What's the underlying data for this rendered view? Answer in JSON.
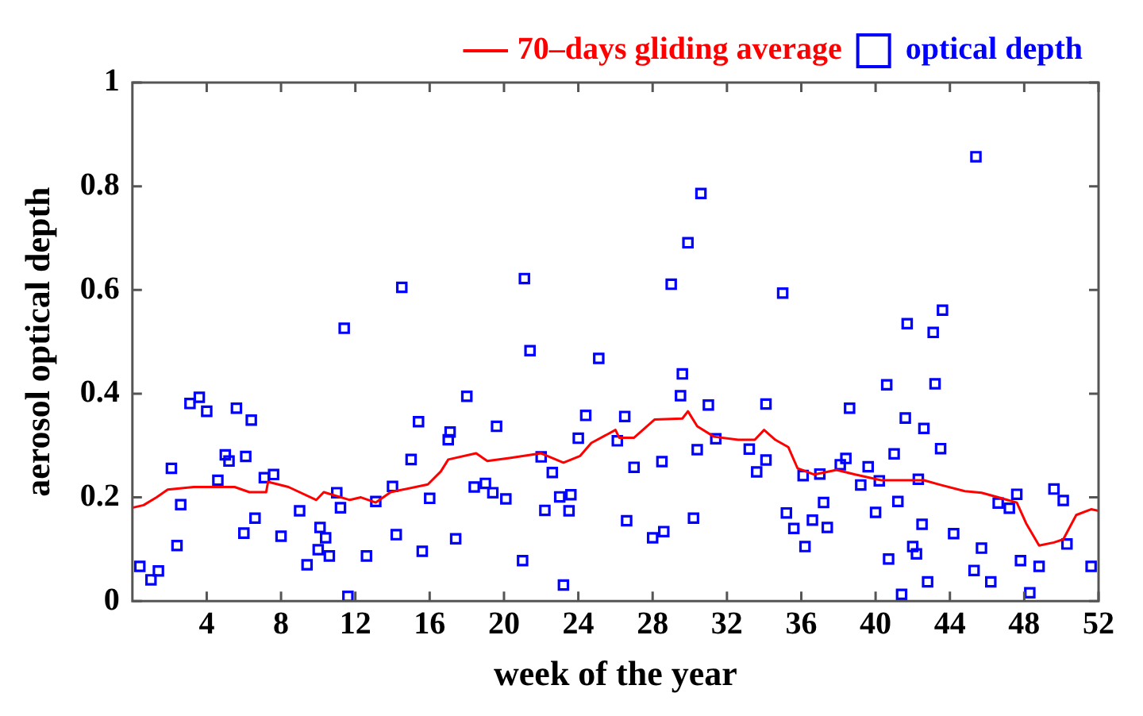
{
  "chart_data": {
    "type": "scatter",
    "xlabel": "week of the year",
    "ylabel": "aerosol optical depth",
    "xlim": [
      0,
      52
    ],
    "xticks": [
      4,
      8,
      12,
      16,
      20,
      24,
      28,
      32,
      36,
      40,
      44,
      48,
      52
    ],
    "ylim": [
      0,
      1
    ],
    "yticks": [
      0,
      0.2,
      0.4,
      0.6,
      0.8,
      1
    ],
    "grid": false,
    "legend": "top right",
    "marker": "square",
    "series": [
      {
        "name": "70–days gliding average",
        "type": "line",
        "color": "#ff0000",
        "marker": "none",
        "x": [
          0,
          0.6,
          1.3,
          1.9,
          3.3,
          5.5,
          6.3,
          7.2,
          7.3,
          8.4,
          9.9,
          10.3,
          11.7,
          12.3,
          13.1,
          13.9,
          15.9,
          16.6,
          17.0,
          18.5,
          19.1,
          20.3,
          22.0,
          23.2,
          24.1,
          24.7,
          26.0,
          26.2,
          27.0,
          28.1,
          29.6,
          29.9,
          30.4,
          31.3,
          32.6,
          33.5,
          34.0,
          34.6,
          35.3,
          35.8,
          36.7,
          37.9,
          38.9,
          40.3,
          42.6,
          43.5,
          44.8,
          45.7,
          46.6,
          47.6,
          48.1,
          48.8,
          49.6,
          50.1,
          50.8,
          51.6,
          52
        ],
        "values": [
          0.18,
          0.185,
          0.2,
          0.215,
          0.22,
          0.22,
          0.21,
          0.21,
          0.23,
          0.22,
          0.195,
          0.21,
          0.195,
          0.2,
          0.19,
          0.21,
          0.225,
          0.25,
          0.273,
          0.285,
          0.27,
          0.276,
          0.285,
          0.267,
          0.28,
          0.305,
          0.33,
          0.315,
          0.315,
          0.35,
          0.352,
          0.366,
          0.337,
          0.317,
          0.311,
          0.311,
          0.33,
          0.311,
          0.297,
          0.256,
          0.244,
          0.253,
          0.244,
          0.233,
          0.233,
          0.224,
          0.212,
          0.209,
          0.2,
          0.19,
          0.15,
          0.107,
          0.113,
          0.119,
          0.166,
          0.177,
          0.174
        ]
      },
      {
        "name": "optical depth",
        "type": "scatter",
        "color": "#0000ff",
        "x": [
          0.4,
          1.0,
          1.4,
          2.1,
          2.6,
          2.4,
          3.1,
          3.6,
          4.0,
          4.6,
          5.0,
          5.2,
          5.6,
          6.4,
          6.1,
          6.0,
          6.6,
          7.1,
          7.6,
          8.0,
          9.0,
          9.4,
          10.1,
          10.0,
          10.4,
          10.6,
          11.0,
          11.2,
          11.4,
          11.6,
          12.6,
          13.1,
          14.0,
          14.2,
          14.5,
          15.0,
          15.4,
          16.0,
          15.6,
          17.0,
          17.1,
          17.4,
          18.0,
          18.4,
          19.0,
          19.4,
          20.1,
          19.6,
          21.1,
          21.0,
          21.4,
          22.0,
          22.6,
          22.2,
          23.0,
          23.6,
          23.5,
          23.2,
          24.0,
          24.4,
          25.1,
          26.1,
          26.5,
          27.0,
          26.6,
          28.0,
          28.6,
          28.5,
          29.0,
          29.5,
          29.6,
          29.9,
          30.6,
          30.2,
          30.4,
          31.0,
          31.4,
          33.2,
          34.1,
          34.1,
          33.6,
          35.0,
          35.2,
          35.6,
          36.2,
          36.1,
          36.6,
          37.0,
          37.2,
          37.4,
          38.1,
          38.4,
          38.6,
          39.2,
          39.6,
          40.0,
          40.2,
          40.6,
          41.0,
          41.2,
          40.7,
          41.4,
          41.6,
          41.7,
          42.0,
          42.2,
          42.3,
          42.5,
          42.6,
          43.1,
          43.2,
          43.6,
          43.5,
          42.8,
          44.2,
          45.4,
          45.3,
          45.7,
          46.2,
          46.6,
          47.2,
          47.6,
          47.8,
          48.8,
          48.3,
          49.6,
          50.1,
          50.3,
          51.6
        ],
        "values": [
          0.067,
          0.041,
          0.058,
          0.256,
          0.186,
          0.107,
          0.381,
          0.393,
          0.366,
          0.233,
          0.282,
          0.27,
          0.372,
          0.349,
          0.279,
          0.131,
          0.16,
          0.238,
          0.244,
          0.125,
          0.174,
          0.07,
          0.142,
          0.099,
          0.122,
          0.087,
          0.209,
          0.18,
          0.526,
          0.009,
          0.087,
          0.192,
          0.221,
          0.128,
          0.605,
          0.273,
          0.346,
          0.198,
          0.096,
          0.311,
          0.326,
          0.12,
          0.395,
          0.22,
          0.227,
          0.209,
          0.197,
          0.337,
          0.622,
          0.078,
          0.483,
          0.278,
          0.248,
          0.175,
          0.201,
          0.205,
          0.174,
          0.031,
          0.314,
          0.358,
          0.468,
          0.309,
          0.356,
          0.258,
          0.155,
          0.122,
          0.134,
          0.269,
          0.611,
          0.396,
          0.438,
          0.691,
          0.786,
          0.16,
          0.292,
          0.378,
          0.313,
          0.293,
          0.38,
          0.272,
          0.249,
          0.594,
          0.17,
          0.14,
          0.105,
          0.242,
          0.156,
          0.245,
          0.19,
          0.142,
          0.263,
          0.275,
          0.372,
          0.224,
          0.259,
          0.171,
          0.232,
          0.417,
          0.284,
          0.192,
          0.081,
          0.013,
          0.353,
          0.535,
          0.105,
          0.091,
          0.235,
          0.148,
          0.333,
          0.518,
          0.419,
          0.561,
          0.294,
          0.037,
          0.13,
          0.857,
          0.059,
          0.102,
          0.037,
          0.189,
          0.179,
          0.206,
          0.078,
          0.067,
          0.016,
          0.216,
          0.194,
          0.11,
          0.067
        ]
      }
    ]
  }
}
